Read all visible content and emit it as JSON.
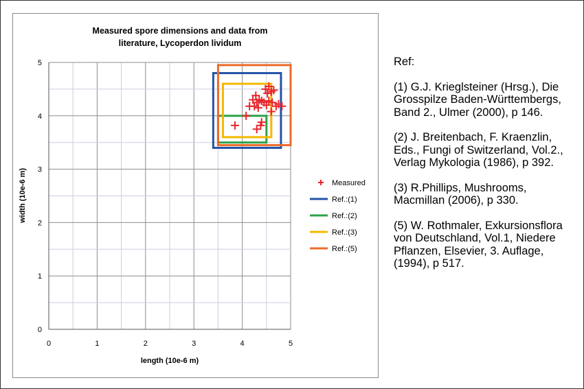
{
  "chart_data": {
    "type": "scatter",
    "title_lines": [
      "Measured spore dimensions and data from",
      "literature, Lycoperdon lividum"
    ],
    "xlabel": "length (10e-6 m)",
    "ylabel": "width (10e-6 m)",
    "xlim": [
      0,
      5
    ],
    "ylim": [
      0,
      5
    ],
    "x_ticks": [
      "0",
      "1",
      "2",
      "3",
      "4",
      "5"
    ],
    "y_ticks": [
      "0",
      "1",
      "2",
      "3",
      "4",
      "5"
    ],
    "grid": true,
    "legend_position": "right",
    "measured": {
      "name": "Measured",
      "color": "#e8242b",
      "points": [
        [
          3.85,
          3.82
        ],
        [
          4.08,
          4.0
        ],
        [
          4.15,
          4.18
        ],
        [
          4.22,
          4.3
        ],
        [
          4.25,
          4.18
        ],
        [
          4.28,
          4.38
        ],
        [
          4.3,
          4.25
        ],
        [
          4.3,
          3.75
        ],
        [
          4.33,
          4.15
        ],
        [
          4.35,
          4.3
        ],
        [
          4.38,
          3.82
        ],
        [
          4.4,
          3.88
        ],
        [
          4.4,
          4.28
        ],
        [
          4.45,
          4.25
        ],
        [
          4.48,
          4.5
        ],
        [
          4.5,
          4.2
        ],
        [
          4.52,
          4.42
        ],
        [
          4.55,
          4.55
        ],
        [
          4.55,
          4.28
        ],
        [
          4.6,
          4.45
        ],
        [
          4.6,
          4.08
        ],
        [
          4.62,
          4.25
        ],
        [
          4.65,
          4.48
        ],
        [
          4.7,
          4.18
        ],
        [
          4.75,
          4.22
        ],
        [
          4.82,
          4.18
        ]
      ]
    },
    "ranges": [
      {
        "name": "Ref.:(1)",
        "color": "#2453a8",
        "x": [
          3.4,
          4.8
        ],
        "y": [
          3.4,
          4.8
        ]
      },
      {
        "name": "Ref.:(2)",
        "color": "#2ca24a",
        "x": [
          3.5,
          4.5
        ],
        "y": [
          3.5,
          4.0
        ]
      },
      {
        "name": "Ref.:(3)",
        "color": "#f4b800",
        "x": [
          3.6,
          4.6
        ],
        "y": [
          3.6,
          4.6
        ]
      },
      {
        "name": "Ref.:(5)",
        "color": "#ed6a2a",
        "x": [
          3.5,
          5.0
        ],
        "y": [
          3.45,
          4.95
        ]
      }
    ]
  },
  "references": {
    "heading": "Ref:",
    "items": [
      "(1) G.J. Krieglsteiner (Hrsg.), Die Grosspilze Baden-Württembergs, Band 2., Ulmer (2000), p 146.",
      "(2) J. Breitenbach, F. Kraenzlin, Eds., Fungi of Switzerland, Vol.2., Verlag Mykologia (1986), p 392.",
      "(3) R.Phillips, Mushrooms, Macmillan (2006), p 330.",
      "(5) W. Rothmaler, Exkursionsflora von Deutschland, Vol.1, Niedere Pflanzen, Elsevier, 3. Auflage, (1994), p 517."
    ]
  }
}
